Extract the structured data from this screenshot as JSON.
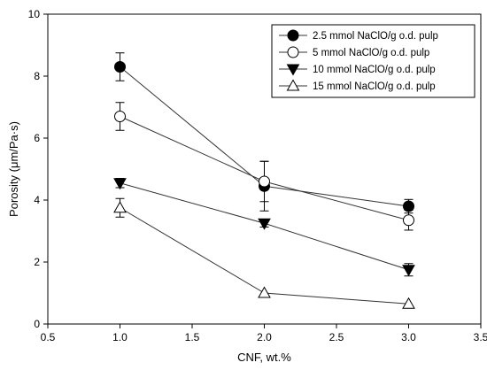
{
  "chart_data": {
    "type": "line",
    "xlabel": "CNF, wt.%",
    "ylabel": "Porosity (μm/Pa·s)",
    "xlim": [
      0.5,
      3.5
    ],
    "ylim": [
      0,
      10
    ],
    "xticks": [
      "0.5",
      "1.0",
      "1.5",
      "2.0",
      "2.5",
      "3.0",
      "3.5"
    ],
    "yticks": [
      "0",
      "2",
      "4",
      "6",
      "8",
      "10"
    ],
    "grid": false,
    "legend_position": "top-right",
    "x": [
      1.0,
      2.0,
      3.0
    ],
    "series": [
      {
        "name": "2.5 mmol NaClO/g o.d. pulp",
        "marker": "circle-filled",
        "values": [
          8.3,
          4.45,
          3.8
        ],
        "errors": [
          0.45,
          0.8,
          0.22
        ]
      },
      {
        "name": "5 mmol NaClO/g o.d. pulp",
        "marker": "circle-open",
        "values": [
          6.7,
          4.6,
          3.35
        ],
        "errors": [
          0.45,
          0.65,
          0.32
        ]
      },
      {
        "name": "10 mmol NaClO/g o.d. pulp",
        "marker": "triangle-down-filled",
        "values": [
          4.55,
          3.25,
          1.75
        ],
        "errors": [
          0.15,
          0.12,
          0.2
        ]
      },
      {
        "name": "15 mmol NaClO/g o.d. pulp",
        "marker": "triangle-up-open",
        "values": [
          3.75,
          1.0,
          0.65
        ],
        "errors": [
          0.3,
          0.05,
          0.05
        ]
      }
    ]
  }
}
